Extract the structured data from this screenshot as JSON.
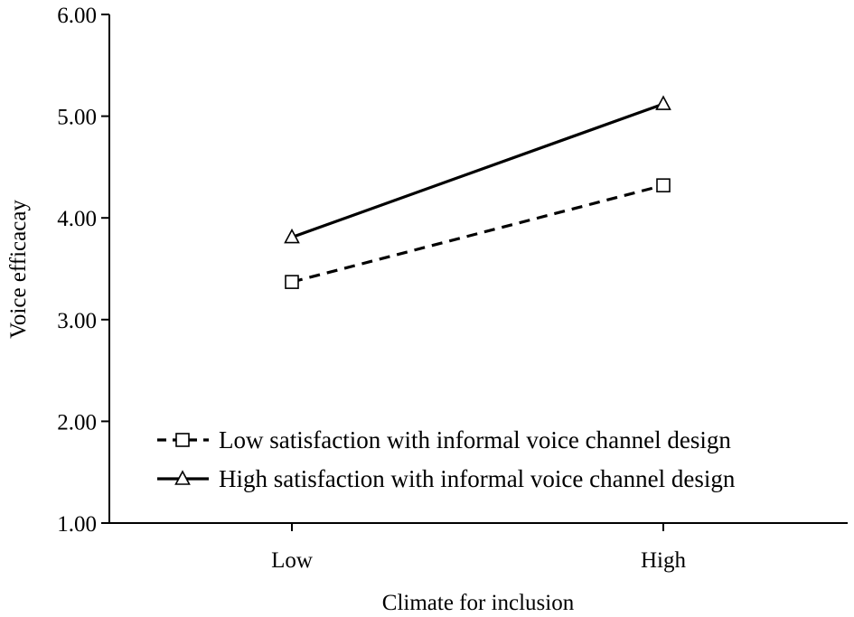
{
  "chart_data": {
    "type": "line",
    "xlabel": "Climate for inclusion",
    "ylabel": "Voice efficacay",
    "categories": [
      "Low",
      "High"
    ],
    "ylim": [
      1.0,
      6.0
    ],
    "yticks": [
      "1.00",
      "2.00",
      "3.00",
      "4.00",
      "5.00",
      "6.00"
    ],
    "grid": false,
    "legend_position": "bottom-right",
    "series": [
      {
        "name": "Low satisfaction with informal voice channel design",
        "values": [
          3.37,
          4.32
        ],
        "line_style": "dashed",
        "marker": "square",
        "color": "#000000"
      },
      {
        "name": "High satisfaction with informal voice channel design",
        "values": [
          3.81,
          5.12
        ],
        "line_style": "solid",
        "marker": "triangle",
        "color": "#000000"
      }
    ]
  }
}
